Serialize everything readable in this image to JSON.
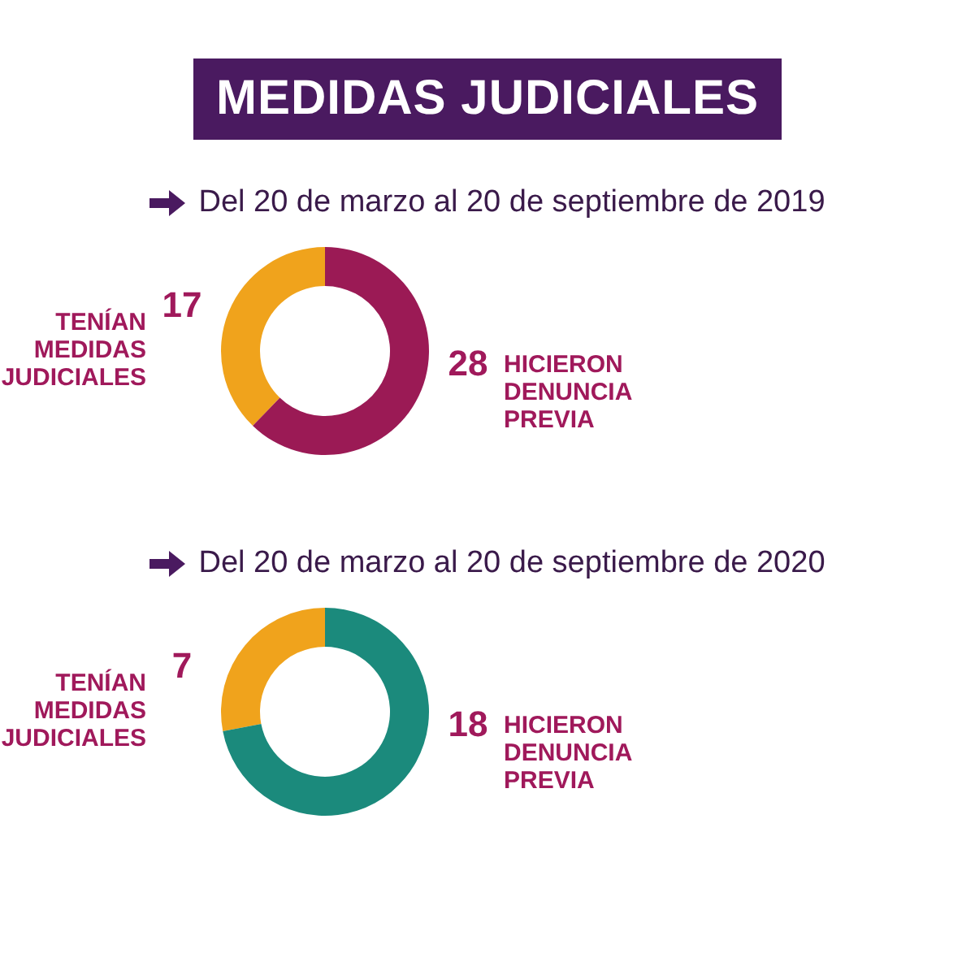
{
  "chart_data": [
    {
      "type": "donut",
      "title": "MEDIDAS JUDICIALES",
      "subtitle": "Del 20 de marzo al 20 de septiembre de 2019",
      "categories": [
        "TENÍAN MEDIDAS JUDICIALES",
        "HICIERON DENUNCIA PREVIA"
      ],
      "values": [
        17,
        28
      ],
      "colors": [
        "#f0a31c",
        "#9b1a55"
      ],
      "data_labels": true,
      "legend": false
    },
    {
      "type": "donut",
      "subtitle": "Del 20 de marzo al 20 de septiembre de 2020",
      "categories": [
        "TENÍAN MEDIDAS JUDICIALES",
        "HICIERON DENUNCIA PREVIA"
      ],
      "values": [
        7,
        18
      ],
      "colors": [
        "#f0a31c",
        "#1b8a7c"
      ],
      "data_labels": true,
      "legend": false
    }
  ]
}
